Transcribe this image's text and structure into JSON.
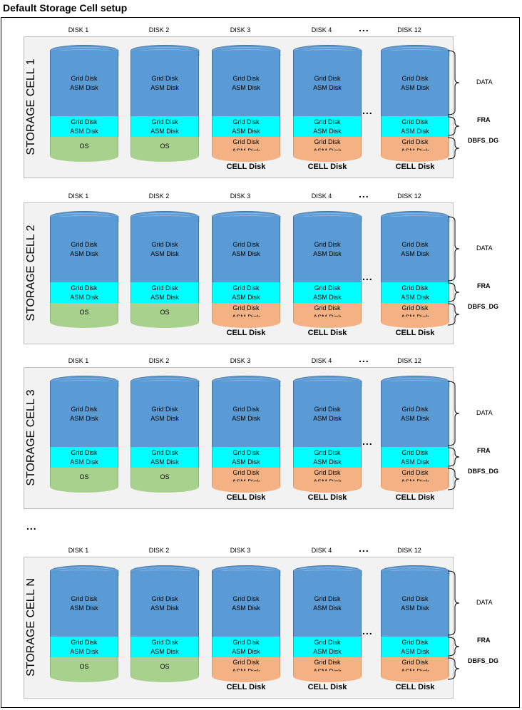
{
  "title": "Default Storage Cell setup",
  "ellipsis": "...",
  "labels": {
    "data_line1": "Grid Disk",
    "data_line2": "ASM Disk",
    "os": "OS",
    "cell_disk": "CELL Disk"
  },
  "legend": {
    "data": "DATA",
    "fra": "FRA",
    "dbfs": "DBFS_DG"
  },
  "colors": {
    "data": "#5b9bd5",
    "fra": "#00ffff",
    "os": "#a9d18e",
    "dbfs": "#f4b183",
    "panel": "#f2f2f2"
  },
  "disks": [
    {
      "label": "DISK 1",
      "bottom": "os"
    },
    {
      "label": "DISK 2",
      "bottom": "os"
    },
    {
      "label": "DISK 3",
      "bottom": "dbfs"
    },
    {
      "label": "DISK 4",
      "bottom": "dbfs"
    },
    {
      "label": "DISK 12",
      "bottom": "dbfs"
    }
  ],
  "cells": [
    {
      "name": "STORAGE CELL 1"
    },
    {
      "name": "STORAGE CELL 2"
    },
    {
      "name": "STORAGE CELL 3"
    },
    {
      "name": "STORAGE CELL N"
    }
  ]
}
